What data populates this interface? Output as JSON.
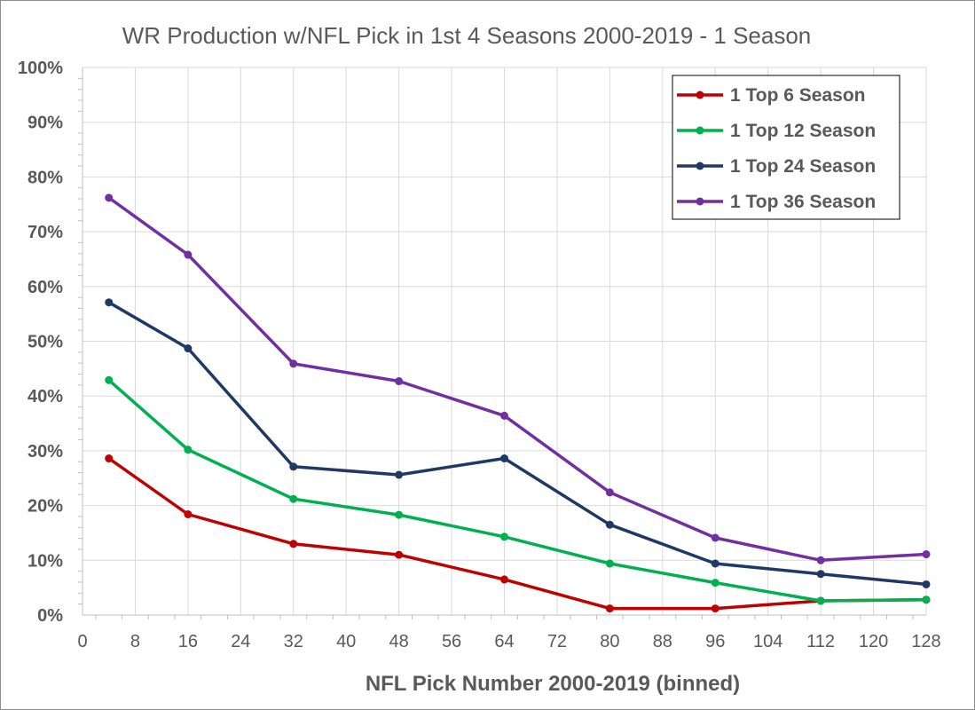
{
  "chart_data": {
    "type": "line",
    "title": "WR Production w/NFL Pick in 1st 4 Seasons 2000-2019 - 1 Season",
    "xlabel": "NFL Pick Number 2000-2019 (binned)",
    "ylabel": "",
    "xlim": [
      0,
      128
    ],
    "ylim": [
      0,
      100
    ],
    "x_ticks": [
      0,
      8,
      16,
      24,
      32,
      40,
      48,
      56,
      64,
      72,
      80,
      88,
      96,
      104,
      112,
      120,
      128
    ],
    "x_tick_labels": [
      "0",
      "8",
      "16",
      "24",
      "32",
      "40",
      "48",
      "56",
      "64",
      "72",
      "80",
      "88",
      "96",
      "104",
      "112",
      "120",
      "128"
    ],
    "y_ticks": [
      0,
      10,
      20,
      30,
      40,
      50,
      60,
      70,
      80,
      90,
      100
    ],
    "y_tick_labels": [
      "0%",
      "10%",
      "20%",
      "30%",
      "40%",
      "50%",
      "60%",
      "70%",
      "80%",
      "90%",
      "100%"
    ],
    "grid": true,
    "legend_position": "top-right",
    "x": [
      4,
      16,
      32,
      48,
      64,
      80,
      96,
      112,
      128
    ],
    "series": [
      {
        "name": "1 Top 6 Season",
        "color": "#c00000",
        "values": [
          28.6,
          18.4,
          13.0,
          11.0,
          6.5,
          1.2,
          1.2,
          2.6,
          2.8
        ]
      },
      {
        "name": "1 Top 12 Season",
        "color": "#00b050",
        "values": [
          42.9,
          30.2,
          21.2,
          18.3,
          14.3,
          9.4,
          5.9,
          2.6,
          2.8
        ]
      },
      {
        "name": "1 Top 24 Season",
        "color": "#1f3864",
        "values": [
          57.1,
          48.7,
          27.1,
          25.6,
          28.6,
          16.5,
          9.4,
          7.5,
          5.6
        ]
      },
      {
        "name": "1 Top 36 Season",
        "color": "#7030a0",
        "values": [
          76.2,
          65.8,
          45.9,
          42.7,
          36.4,
          22.4,
          14.1,
          10.0,
          11.1
        ]
      }
    ]
  }
}
